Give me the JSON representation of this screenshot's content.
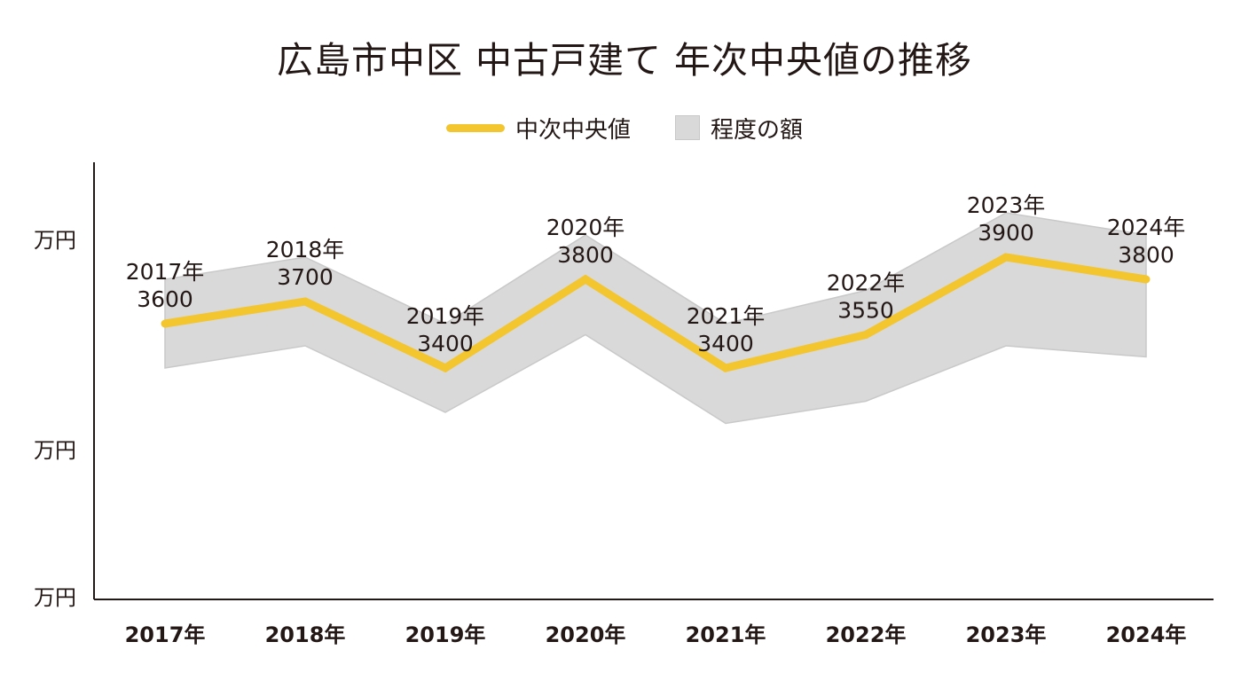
{
  "colors": {
    "median_line": "#F3C52E",
    "band_fill": "#D9D9D9",
    "band_stroke": "#C9C9C9",
    "axis": "#231815",
    "text": "#231815"
  },
  "chart_data": {
    "type": "line",
    "title": "広島市中区 中古戸建て 年次中央値の推移",
    "legend": [
      "中次中央値",
      "程度の額"
    ],
    "legend_placement": "top-center",
    "grid": false,
    "categories": [
      "2017年",
      "2018年",
      "2019年",
      "2020年",
      "2021年",
      "2022年",
      "2023年",
      "2024年"
    ],
    "y_tick_labels": [
      "万円",
      "万円",
      "万円"
    ],
    "ylim": [
      2500,
      4500
    ],
    "series": [
      {
        "name": "中次中央値",
        "values": [
          3600,
          3700,
          3400,
          3800,
          3400,
          3550,
          3900,
          3800
        ]
      }
    ],
    "band": {
      "name": "程度の額",
      "upper": [
        3800,
        3900,
        3600,
        4000,
        3600,
        3750,
        4100,
        4000
      ],
      "lower": [
        3400,
        3500,
        3200,
        3550,
        3150,
        3250,
        3500,
        3450
      ]
    },
    "data_labels": [
      {
        "year": "2017年",
        "value": "3600"
      },
      {
        "year": "2018年",
        "value": "3700"
      },
      {
        "year": "2019年",
        "value": "3400"
      },
      {
        "year": "2020年",
        "value": "3800"
      },
      {
        "year": "2021年",
        "value": "3400"
      },
      {
        "year": "2022年",
        "value": "3550"
      },
      {
        "year": "2023年",
        "value": "3900"
      },
      {
        "year": "2024年",
        "value": "3800"
      }
    ]
  }
}
